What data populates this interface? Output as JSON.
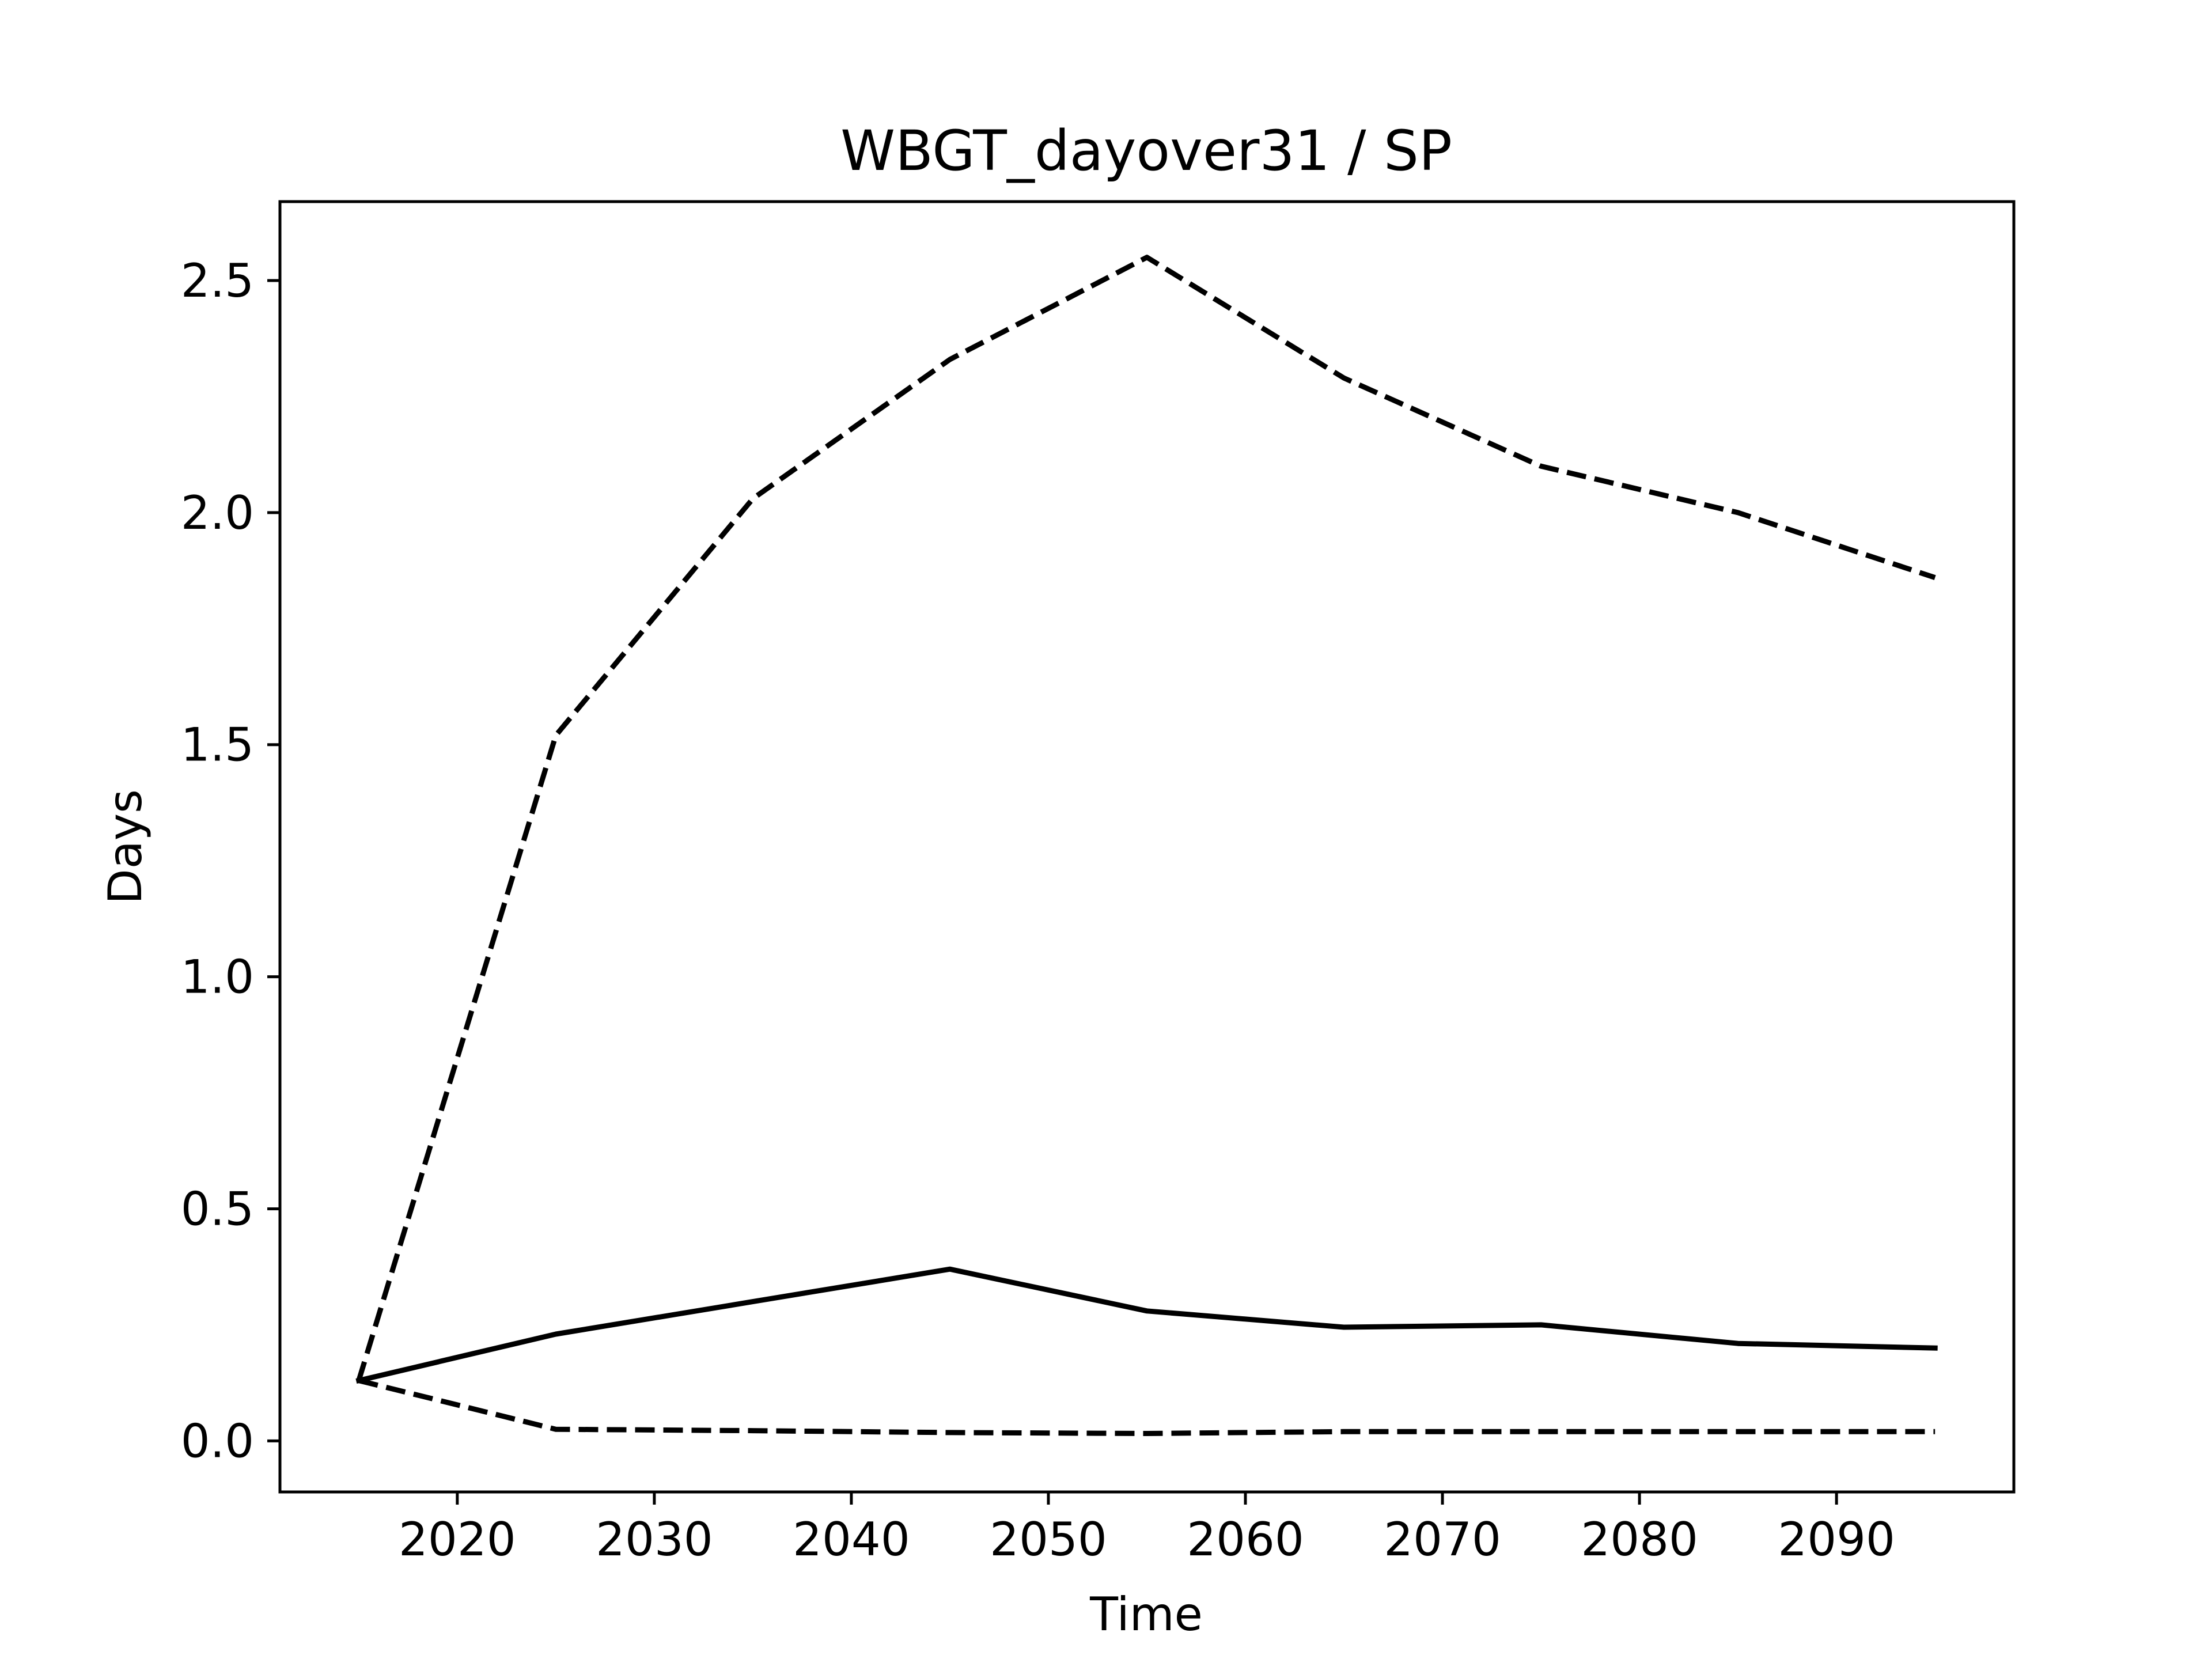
{
  "chart_data": {
    "type": "line",
    "title": "WBGT_dayover31 / SP",
    "xlabel": "Time",
    "ylabel": "Days",
    "x": [
      2015,
      2025,
      2035,
      2045,
      2055,
      2065,
      2075,
      2085,
      2095
    ],
    "series": [
      {
        "style": "solid",
        "values": [
          0.13,
          0.23,
          0.3,
          0.37,
          0.28,
          0.245,
          0.25,
          0.21,
          0.2
        ]
      },
      {
        "style": "dashed",
        "values": [
          0.13,
          1.52,
          2.03,
          2.33,
          2.55,
          2.29,
          2.1,
          2.0,
          1.86
        ]
      },
      {
        "style": "dashed",
        "values": [
          0.13,
          0.025,
          0.022,
          0.018,
          0.016,
          0.02,
          0.02,
          0.02,
          0.02
        ]
      }
    ],
    "xlim": [
      2011,
      2099
    ],
    "ylim": [
      -0.11,
      2.67
    ],
    "xticks": [
      2020,
      2030,
      2040,
      2050,
      2060,
      2070,
      2080,
      2090
    ],
    "xtick_labels": [
      "2020",
      "2030",
      "2040",
      "2050",
      "2060",
      "2070",
      "2080",
      "2090"
    ],
    "yticks": [
      0.0,
      0.5,
      1.0,
      1.5,
      2.0,
      2.5
    ],
    "ytick_labels": [
      "0.0",
      "0.5",
      "1.0",
      "1.5",
      "2.0",
      "2.5"
    ],
    "grid": false,
    "legend": "none",
    "line_color": "#000000"
  }
}
